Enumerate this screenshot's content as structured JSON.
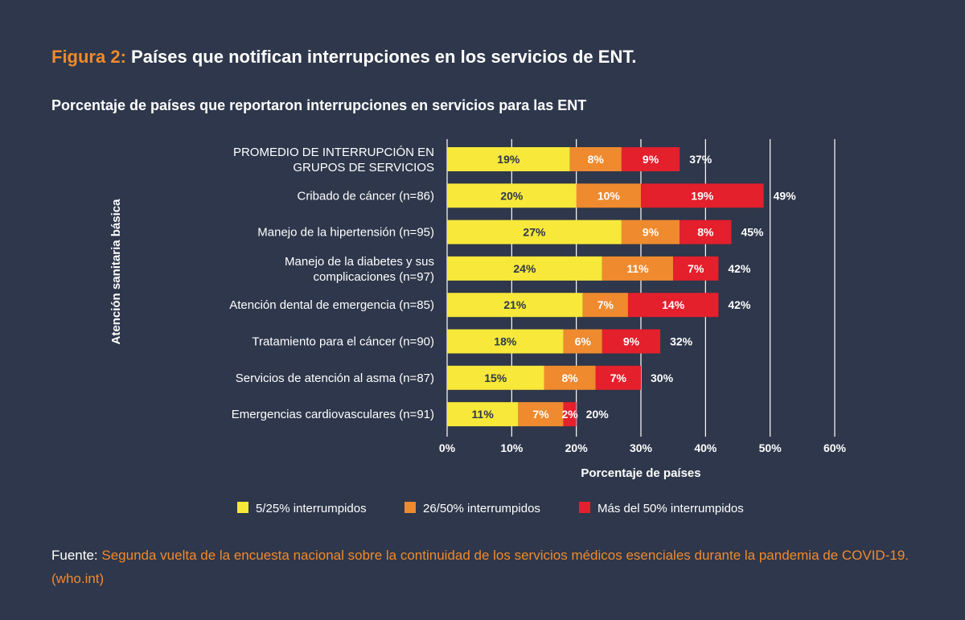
{
  "figure": {
    "prefix": "Figura 2:",
    "title": "Países que notifican interrupciones en los servicios de ENT.",
    "subtitle": "Porcentaje de países que reportaron interrupciones en servicios para las ENT"
  },
  "colors": {
    "background": "#2e374b",
    "accent": "#f08a2c",
    "yellow": "#f7e83a",
    "orange": "#ef8a2e",
    "red": "#e3202c"
  },
  "chart_data": {
    "type": "bar",
    "orientation": "horizontal",
    "stacked": true,
    "categories": [
      "PROMEDIO DE INTERRUPCIÓN EN GRUPOS DE SERVICIOS",
      "Cribado de cáncer (n=86)",
      "Manejo de la hipertensión (n=95)",
      "Manejo de la diabetes y sus complicaciones (n=97)",
      "Atención dental de emergencia (n=85)",
      "Tratamiento para el cáncer (n=90)",
      "Servicios de atención al asma (n=87)",
      "Emergencias cardiovasculares (n=91)"
    ],
    "category_lines": [
      [
        "PROMEDIO DE INTERRUPCIÓN EN",
        "GRUPOS DE SERVICIOS"
      ],
      [
        "Cribado de cáncer (n=86)"
      ],
      [
        "Manejo de la hipertensión (n=95)"
      ],
      [
        "Manejo de la diabetes y sus",
        "complicaciones (n=97)"
      ],
      [
        "Atención dental de emergencia (n=85)"
      ],
      [
        "Tratamiento para el cáncer (n=90)"
      ],
      [
        "Servicios de atención al asma (n=87)"
      ],
      [
        "Emergencias cardiovasculares (n=91)"
      ]
    ],
    "series": [
      {
        "name": "5/25% interrumpidos",
        "color": "#f7e83a",
        "values": [
          19,
          20,
          27,
          24,
          21,
          18,
          15,
          11
        ]
      },
      {
        "name": "26/50% interrumpidos",
        "color": "#ef8a2e",
        "values": [
          8,
          10,
          9,
          11,
          7,
          6,
          8,
          7
        ]
      },
      {
        "name": "Más del 50% interrumpidos",
        "color": "#e3202c",
        "values": [
          9,
          19,
          8,
          7,
          14,
          9,
          7,
          2
        ]
      }
    ],
    "totals": [
      37,
      49,
      45,
      42,
      42,
      32,
      30,
      20
    ],
    "xlabel": "Porcentaje de países",
    "ylabel": "Atención sanitaria básica",
    "xlim": [
      0,
      60
    ],
    "xticks": [
      "0%",
      "10%",
      "20%",
      "30%",
      "40%",
      "50%",
      "60%"
    ],
    "grid": true,
    "legend": "bottom"
  },
  "source": {
    "label": "Fuente:",
    "text": "Segunda vuelta de la encuesta nacional sobre la continuidad de los servicios médicos esenciales durante la pandemia de COVID-19. (who.int)"
  }
}
